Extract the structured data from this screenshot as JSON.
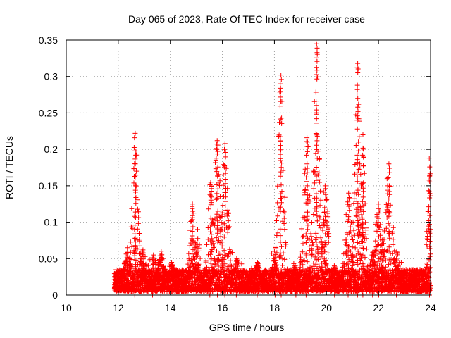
{
  "chart_data": {
    "type": "scatter",
    "title": "Day 065 of 2023, Rate Of TEC Index for receiver case",
    "xlabel": "GPS time / hours",
    "ylabel": "ROTI / TECUs",
    "xlim": [
      10,
      24
    ],
    "ylim": [
      0,
      0.35
    ],
    "xticks": [
      "10",
      "12",
      "14",
      "16",
      "18",
      "20",
      "22",
      "24"
    ],
    "yticks": [
      "0",
      "0.05",
      "0.1",
      "0.15",
      "0.2",
      "0.25",
      "0.3",
      "0.35"
    ],
    "grid": true,
    "marker": "+",
    "color": "#ff0000",
    "baseline": {
      "x_start": 11.85,
      "x_end": 24.0,
      "y_min": 0.005,
      "y_max": 0.035
    },
    "spikes": [
      {
        "center": 12.65,
        "peak": 0.222,
        "width": 0.12
      },
      {
        "center": 12.35,
        "peak": 0.065,
        "width": 0.15
      },
      {
        "center": 12.95,
        "peak": 0.062,
        "width": 0.15
      },
      {
        "center": 13.35,
        "peak": 0.055,
        "width": 0.15
      },
      {
        "center": 13.65,
        "peak": 0.06,
        "width": 0.15
      },
      {
        "center": 14.05,
        "peak": 0.045,
        "width": 0.15
      },
      {
        "center": 14.85,
        "peak": 0.125,
        "width": 0.12
      },
      {
        "center": 15.05,
        "peak": 0.09,
        "width": 0.12
      },
      {
        "center": 15.55,
        "peak": 0.155,
        "width": 0.13
      },
      {
        "center": 15.8,
        "peak": 0.212,
        "width": 0.14
      },
      {
        "center": 16.1,
        "peak": 0.208,
        "width": 0.14
      },
      {
        "center": 16.55,
        "peak": 0.05,
        "width": 0.15
      },
      {
        "center": 17.35,
        "peak": 0.045,
        "width": 0.15
      },
      {
        "center": 18.25,
        "peak": 0.302,
        "width": 0.12
      },
      {
        "center": 18.0,
        "peak": 0.06,
        "width": 0.12
      },
      {
        "center": 18.8,
        "peak": 0.04,
        "width": 0.15
      },
      {
        "center": 19.25,
        "peak": 0.216,
        "width": 0.15
      },
      {
        "center": 19.62,
        "peak": 0.345,
        "width": 0.12
      },
      {
        "center": 19.95,
        "peak": 0.15,
        "width": 0.15
      },
      {
        "center": 20.3,
        "peak": 0.04,
        "width": 0.15
      },
      {
        "center": 20.85,
        "peak": 0.14,
        "width": 0.14
      },
      {
        "center": 21.2,
        "peak": 0.318,
        "width": 0.12
      },
      {
        "center": 21.4,
        "peak": 0.22,
        "width": 0.1
      },
      {
        "center": 21.8,
        "peak": 0.06,
        "width": 0.15
      },
      {
        "center": 22.0,
        "peak": 0.125,
        "width": 0.15
      },
      {
        "center": 22.4,
        "peak": 0.18,
        "width": 0.15
      },
      {
        "center": 22.7,
        "peak": 0.06,
        "width": 0.15
      },
      {
        "center": 23.95,
        "peak": 0.188,
        "width": 0.08
      }
    ]
  }
}
